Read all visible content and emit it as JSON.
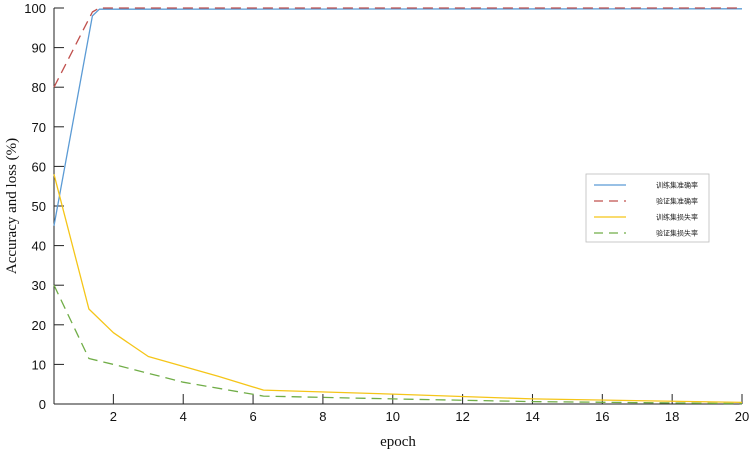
{
  "chart_data": {
    "type": "line",
    "xlabel": "epoch",
    "ylabel": "Accuracy and loss (%)",
    "xlim": [
      0.3,
      20
    ],
    "ylim": [
      0,
      100
    ],
    "xticks": [
      2,
      4,
      6,
      8,
      10,
      12,
      14,
      16,
      18,
      20
    ],
    "yticks": [
      0,
      10,
      20,
      30,
      40,
      50,
      60,
      70,
      80,
      90,
      100
    ],
    "legend_position": "right",
    "series": [
      {
        "name": "训练集准确率",
        "color": "#5b9bd5",
        "dash": "solid",
        "x": [
          0.3,
          1.4,
          1.6,
          2,
          20
        ],
        "y": [
          45,
          98,
          99.7,
          99.7,
          99.8
        ]
      },
      {
        "name": "验证集准确率",
        "color": "#c0504d",
        "dash": "dashed",
        "x": [
          0.3,
          1.4,
          1.6,
          2,
          20
        ],
        "y": [
          80,
          99,
          100,
          100,
          100
        ]
      },
      {
        "name": "训练集损失率",
        "color": "#f5c518",
        "dash": "solid",
        "x": [
          0.3,
          1.3,
          2,
          3,
          5,
          6.3,
          10,
          14,
          20
        ],
        "y": [
          58,
          24,
          18,
          12,
          7,
          3.5,
          2.5,
          1.3,
          0.4
        ]
      },
      {
        "name": "验证集损失率",
        "color": "#70ad47",
        "dash": "dashed",
        "x": [
          0.3,
          1.3,
          2,
          4,
          6.3,
          10,
          14,
          20
        ],
        "y": [
          30,
          11.5,
          10,
          5.5,
          2,
          1.3,
          0.6,
          0.1
        ]
      }
    ]
  }
}
